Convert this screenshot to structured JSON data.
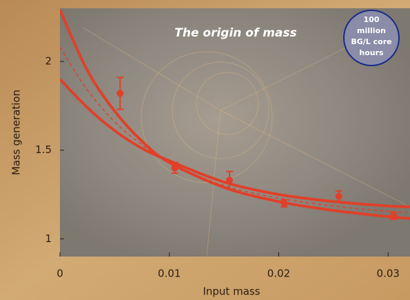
{
  "chart_data": {
    "type": "scatter",
    "title": "The origin of mass",
    "badge": [
      "100",
      "million",
      "BG/L core",
      "hours"
    ],
    "x_label": "Input mass",
    "y_label": "Mass generation",
    "xlim": [
      0,
      0.032
    ],
    "ylim": [
      0.9,
      2.3
    ],
    "xticks": [
      0,
      0.01,
      0.02,
      0.03
    ],
    "yticks": [
      1,
      1.5,
      2
    ],
    "series": [
      {
        "style": "points",
        "color": "#e0402a",
        "x": [
          0.0055,
          0.0105,
          0.0155,
          0.0205,
          0.0255,
          0.0305
        ],
        "values": [
          1.82,
          1.4,
          1.33,
          1.2,
          1.24,
          1.13
        ],
        "errors": [
          0.09,
          0.03,
          0.05,
          0.02,
          0.03,
          0.02
        ]
      },
      {
        "style": "line",
        "color": "#e0402a",
        "x": [
          0,
          0.0025,
          0.005,
          0.0075,
          0.01,
          0.015,
          0.02,
          0.025,
          0.03,
          0.032
        ],
        "values": [
          2.29,
          1.95,
          1.72,
          1.55,
          1.43,
          1.29,
          1.21,
          1.16,
          1.125,
          1.115
        ]
      },
      {
        "style": "line",
        "color": "#e0402a",
        "x": [
          0,
          0.0025,
          0.005,
          0.0075,
          0.01,
          0.015,
          0.02,
          0.025,
          0.03,
          0.032
        ],
        "values": [
          1.9,
          1.74,
          1.61,
          1.51,
          1.44,
          1.32,
          1.25,
          1.21,
          1.185,
          1.18
        ]
      },
      {
        "style": "dashed",
        "color": "#e0402a",
        "x": [
          0,
          0.0025,
          0.005,
          0.0075,
          0.01,
          0.015,
          0.02,
          0.025,
          0.03,
          0.032
        ],
        "values": [
          2.08,
          1.84,
          1.66,
          1.53,
          1.43,
          1.3,
          1.23,
          1.185,
          1.155,
          1.15
        ]
      }
    ]
  }
}
